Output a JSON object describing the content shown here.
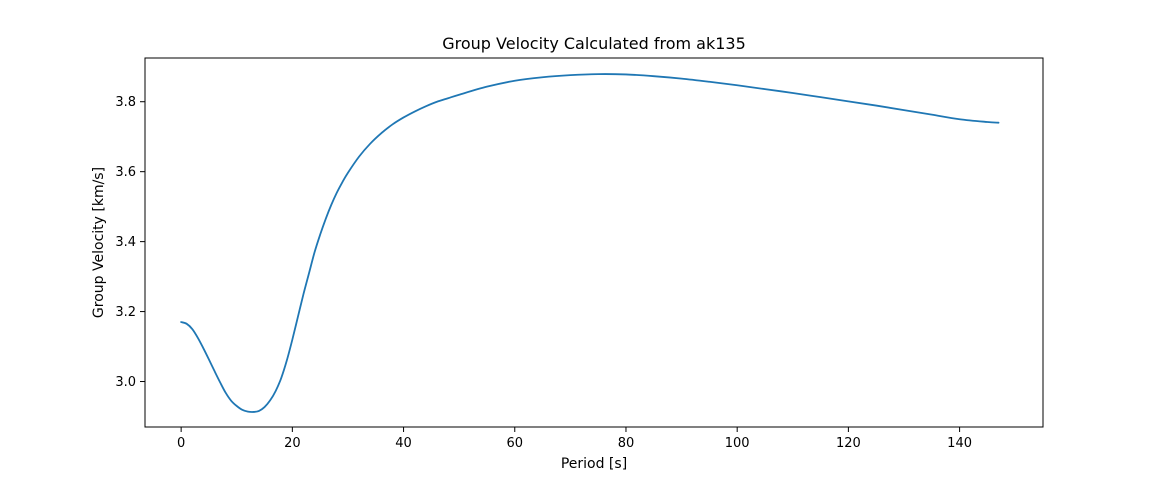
{
  "chart_data": {
    "type": "line",
    "title": "Group Velocity Calculated from ak135",
    "xlabel": "Period [s]",
    "ylabel": "Group Velocity [km/s]",
    "xlim": [
      -6.5,
      155
    ],
    "ylim": [
      2.87,
      3.925
    ],
    "xticks": [
      0,
      20,
      40,
      60,
      80,
      100,
      120,
      140
    ],
    "yticks": [
      3.0,
      3.2,
      3.4,
      3.6,
      3.8
    ],
    "xtick_labels": [
      "0",
      "20",
      "40",
      "60",
      "80",
      "100",
      "120",
      "140"
    ],
    "ytick_labels": [
      "3.0",
      "3.2",
      "3.4",
      "3.6",
      "3.8"
    ],
    "grid": false,
    "series": [
      {
        "color": "#1f77b4",
        "x": [
          0,
          1,
          2,
          3,
          4,
          5,
          6,
          7,
          8,
          9,
          10,
          11,
          12,
          13,
          14,
          15,
          16,
          17,
          18,
          19,
          20,
          21,
          22,
          23,
          24,
          25,
          26,
          27,
          28,
          29,
          30,
          32,
          34,
          36,
          38,
          40,
          42,
          44,
          46,
          48,
          50,
          55,
          60,
          65,
          70,
          75,
          80,
          85,
          90,
          95,
          100,
          105,
          110,
          115,
          120,
          125,
          130,
          135,
          140,
          145,
          147
        ],
        "y": [
          3.17,
          3.165,
          3.15,
          3.125,
          3.095,
          3.063,
          3.03,
          2.998,
          2.968,
          2.945,
          2.93,
          2.919,
          2.914,
          2.913,
          2.916,
          2.927,
          2.946,
          2.973,
          3.01,
          3.06,
          3.12,
          3.185,
          3.25,
          3.31,
          3.37,
          3.42,
          3.465,
          3.505,
          3.54,
          3.57,
          3.597,
          3.643,
          3.68,
          3.71,
          3.735,
          3.755,
          3.772,
          3.787,
          3.8,
          3.81,
          3.82,
          3.843,
          3.86,
          3.87,
          3.876,
          3.879,
          3.878,
          3.873,
          3.866,
          3.857,
          3.847,
          3.836,
          3.825,
          3.813,
          3.801,
          3.789,
          3.776,
          3.763,
          3.75,
          3.742,
          3.74
        ]
      }
    ]
  }
}
